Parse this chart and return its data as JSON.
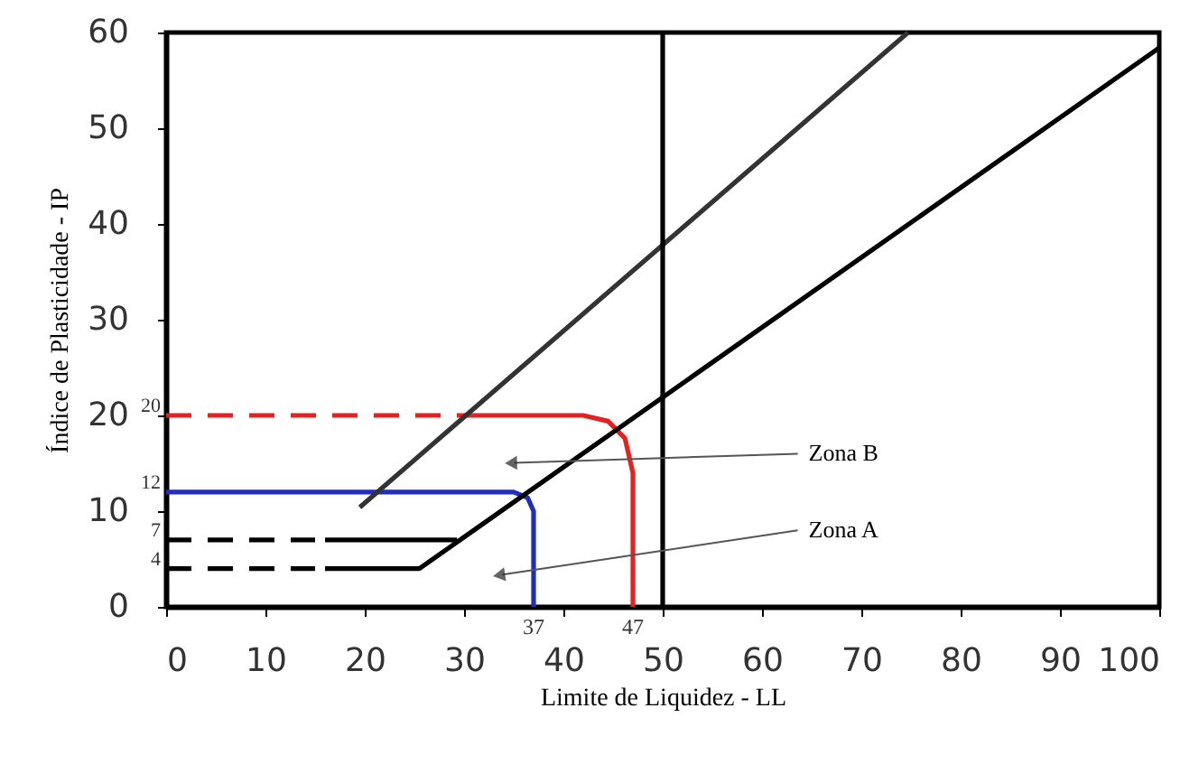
{
  "chart_data": {
    "type": "line",
    "xlabel": "Limite de Liquidez - LL",
    "ylabel": "Índice de Plasticidade - IP",
    "xlim": [
      0,
      100
    ],
    "xticks": [
      0,
      10,
      20,
      30,
      40,
      50,
      60,
      70,
      80,
      90,
      100
    ],
    "ylim": [
      0,
      60
    ],
    "yticks": [
      0,
      10,
      20,
      30,
      40,
      50,
      60
    ],
    "grid": false,
    "marker": "none",
    "series": [
      {
        "color": "#e02424",
        "line_style": "dashed",
        "x": [
          0,
          30
        ],
        "values": [
          20,
          20
        ]
      },
      {
        "color": "#e02424",
        "line_style": "solid",
        "x": [
          30,
          42,
          44.5,
          46.2,
          47,
          47
        ],
        "values": [
          20,
          20,
          19.4,
          17.6,
          14,
          0
        ]
      },
      {
        "color": "#1f2fb8",
        "line_style": "solid",
        "x": [
          0,
          35,
          36.4,
          37,
          37
        ],
        "values": [
          12,
          12,
          11.4,
          10,
          0
        ]
      },
      {
        "color": "#000000",
        "line_style": "dashed",
        "x": [
          0,
          15
        ],
        "values": [
          7,
          7
        ]
      },
      {
        "color": "#000000",
        "line_style": "solid",
        "x": [
          16,
          29.3
        ],
        "values": [
          7,
          7
        ]
      },
      {
        "color": "#000000",
        "line_style": "dashed",
        "x": [
          0,
          15
        ],
        "values": [
          4,
          4
        ]
      },
      {
        "color": "#000000",
        "line_style": "solid",
        "x": [
          16,
          25.5,
          100
        ],
        "values": [
          4,
          4,
          58.4
        ]
      },
      {
        "color": "#333333",
        "line_style": "solid",
        "x": [
          19.5,
          74.7
        ],
        "values": [
          10.4,
          60
        ]
      }
    ],
    "ref_lines": [
      {
        "axis": "x",
        "value": 50,
        "color": "#000000"
      }
    ],
    "annotations": [
      "Zona B",
      "Zona A",
      {
        "text": "20",
        "x": 0,
        "y": 20
      },
      {
        "text": "12",
        "x": 0,
        "y": 12
      },
      {
        "text": "7",
        "x": 0,
        "y": 7
      },
      {
        "text": "4",
        "x": 0,
        "y": 4
      },
      {
        "text": "37",
        "x": 37,
        "y": 0
      },
      {
        "text": "47",
        "x": 47,
        "y": 0
      }
    ]
  }
}
